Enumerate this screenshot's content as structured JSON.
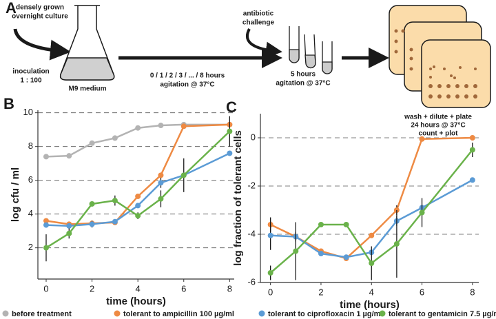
{
  "schematic": {
    "panel": "A",
    "culture": [
      "densely grown",
      "overnight culture"
    ],
    "inoculation": [
      "inoculation",
      "1 : 100"
    ],
    "medium": "M9 medium",
    "growth": [
      "0 / 1 / 2 / 3 / ... / 8 hours",
      "agitation @ 37°C"
    ],
    "challenge": [
      "antibiotic",
      "challenge"
    ],
    "treatment": [
      "5 hours",
      "agitation @ 37°C"
    ],
    "plating": [
      "wash + dilute + plate",
      "24 hours @ 37°C",
      "count + plot"
    ]
  },
  "chart_data": [
    {
      "type": "line",
      "label": "B",
      "xlabel": "time (hours)",
      "ylabel": "log cfu / ml",
      "x": [
        0,
        1,
        2,
        3,
        4,
        5,
        6,
        8
      ],
      "xlim": [
        -0.36,
        8.2
      ],
      "xticks": [
        0,
        2,
        4,
        6,
        8
      ],
      "ylim": [
        0.15,
        10.15
      ],
      "yticks": [
        2,
        4,
        6,
        8,
        10
      ],
      "grid": true,
      "series": [
        {
          "name": "before treatment",
          "color": "#b3b3b3",
          "values": [
            7.4,
            7.45,
            8.2,
            8.5,
            9.1,
            9.25,
            9.3,
            9.3
          ],
          "errors": [
            0.1,
            null,
            0.1,
            null,
            null,
            null,
            null,
            null
          ]
        },
        {
          "name": "tolerant to ampicillin 100 µg/ml",
          "color": "#ee8a43",
          "values": [
            3.6,
            3.4,
            3.45,
            3.5,
            5.05,
            6.3,
            9.2,
            9.3
          ],
          "errors": [
            null,
            null,
            null,
            null,
            null,
            null,
            null,
            null
          ]
        },
        {
          "name": "tolerant to ciprofloxacin 1 µg/ml",
          "color": "#5b9bd5",
          "values": [
            3.35,
            3.3,
            3.4,
            3.55,
            4.5,
            5.85,
            6.3,
            7.6
          ],
          "errors": [
            null,
            null,
            0.2,
            null,
            null,
            0.3,
            null,
            null
          ]
        },
        {
          "name": "tolerant to gentamicin 7.5 µg/ml",
          "color": "#6ab24a",
          "values": [
            2.0,
            2.85,
            4.6,
            4.8,
            3.9,
            4.9,
            6.3,
            8.9
          ],
          "errors": [
            0.8,
            0.3,
            0.15,
            0.3,
            0.2,
            0.5,
            1.0,
            0.9
          ]
        }
      ]
    },
    {
      "type": "line",
      "label": "C",
      "xlabel": "time (hours)",
      "ylabel": "log fraction of tolerant cells",
      "x": [
        0,
        1,
        2,
        3,
        4,
        5,
        6,
        8
      ],
      "xlim": [
        -0.4,
        8.25
      ],
      "xticks": [
        0,
        2,
        4,
        6,
        8
      ],
      "ylim": [
        -6,
        1
      ],
      "yticks": [
        -6,
        -4,
        -2,
        0
      ],
      "grid": true,
      "series": [
        {
          "name": "tolerant to ampicillin 100 µg/ml",
          "color": "#ee8a43",
          "values": [
            -3.6,
            -4.1,
            -4.7,
            -5.0,
            -4.05,
            -3.0,
            -0.05,
            0.0
          ],
          "errors": [
            0.3,
            null,
            null,
            null,
            null,
            0.2,
            null,
            null
          ]
        },
        {
          "name": "tolerant to ciprofloxacin 1 µg/ml",
          "color": "#5b9bd5",
          "values": [
            -4.05,
            -4.1,
            -4.8,
            -4.95,
            -4.75,
            -3.45,
            -2.9,
            -1.75
          ],
          "errors": [
            0.6,
            0.2,
            0.1,
            0.1,
            null,
            0.2,
            null,
            null
          ]
        },
        {
          "name": "tolerant to gentamicin 7.5 µg/ml",
          "color": "#6ab24a",
          "values": [
            -5.6,
            -4.7,
            -3.6,
            -3.6,
            -5.2,
            -4.4,
            -3.1,
            -0.5
          ],
          "errors": [
            0.3,
            1.2,
            null,
            null,
            0.7,
            1.4,
            0.6,
            0.3
          ]
        }
      ]
    }
  ]
}
